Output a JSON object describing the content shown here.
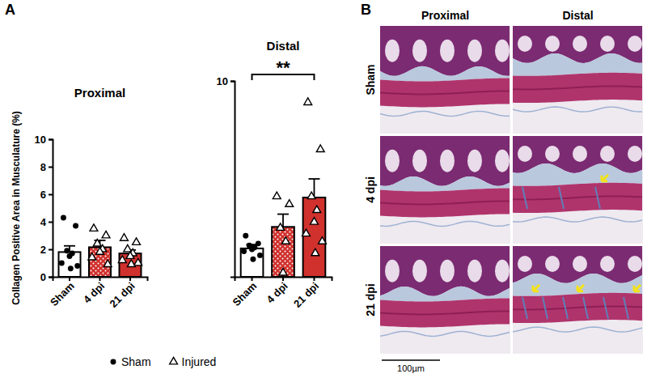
{
  "chart_data": [
    {
      "type": "bar",
      "title": "Proximal",
      "y_label": "Collagen Positive Area in Musculature (%)",
      "categories": [
        "Sham",
        "4 dpi",
        "21 dpi"
      ],
      "values": [
        1.8,
        2.15,
        1.7
      ],
      "errors": [
        0.45,
        0.5,
        0.25
      ],
      "colors": [
        "#ffffff",
        "#d0312d",
        "#d0312d"
      ],
      "points": [
        [
          4.3,
          3.7,
          1.9,
          1.7,
          1.5,
          1.0,
          0.8,
          0.6
        ],
        [
          3.5,
          3.0,
          2.4,
          2.0,
          1.8,
          1.4,
          0.9
        ],
        [
          2.8,
          2.5,
          2.0,
          1.7,
          1.5,
          1.2,
          1.0,
          0.9
        ]
      ],
      "point_series": [
        "Sham",
        "Injured",
        "Injured"
      ],
      "ylim": [
        0,
        10
      ],
      "yticks": [
        0,
        2,
        4,
        6,
        8,
        10
      ]
    },
    {
      "type": "bar",
      "title": "Distal",
      "categories": [
        "Sham",
        "4 dpi",
        "21 dpi"
      ],
      "values": [
        1.45,
        2.55,
        4.05
      ],
      "errors": [
        0.2,
        0.65,
        0.95
      ],
      "colors": [
        "#ffffff",
        "#d0312d",
        "#d0312d"
      ],
      "points": [
        [
          2.1,
          1.7,
          1.6,
          1.5,
          1.4,
          1.3,
          1.1,
          0.9
        ],
        [
          4.1,
          3.7,
          2.5,
          1.8,
          0.2
        ],
        [
          8.9,
          6.5,
          4.1,
          3.4,
          2.8,
          2.2,
          1.8,
          1.2
        ]
      ],
      "point_series": [
        "Sham",
        "Injured",
        "Injured"
      ],
      "ylim": [
        0,
        10
      ],
      "yticks": [
        10
      ],
      "annotations": [
        {
          "text": "**",
          "from": "Sham",
          "to": "21 dpi"
        }
      ]
    }
  ],
  "legend": {
    "position": "bottom",
    "entries": [
      {
        "name": "Sham",
        "marker": "circle"
      },
      {
        "name": "Injured",
        "marker": "triangle"
      }
    ]
  },
  "panel_labels": [
    "A",
    "B"
  ],
  "images": {
    "columns": [
      "Proximal",
      "Distal"
    ],
    "rows": [
      "Sham",
      "4 dpi",
      "21 dpi"
    ],
    "scale_bar": "100µm"
  }
}
